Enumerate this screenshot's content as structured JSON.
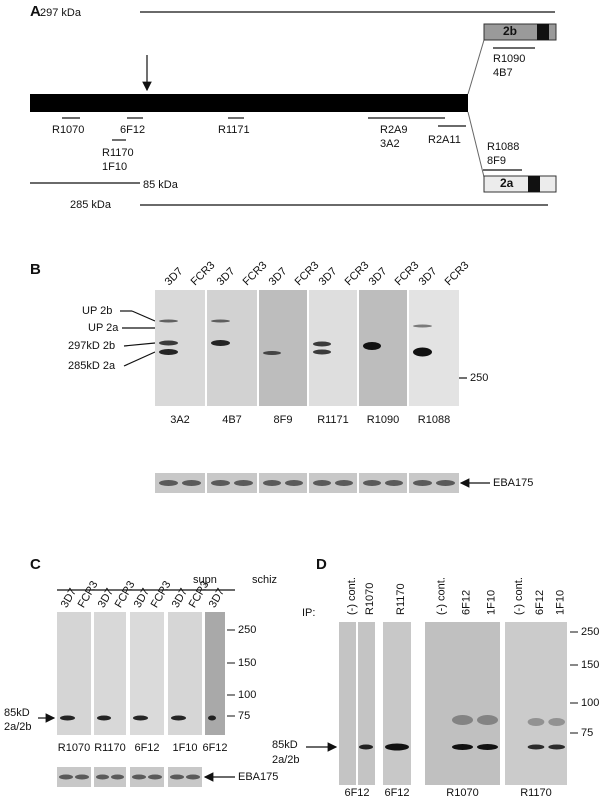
{
  "panel_a": {
    "label": "A",
    "mw_297": "297 kDa",
    "mw_85": "85 kDa",
    "mw_285": "285 kDa",
    "isoform_2b": "2b",
    "isoform_2a": "2a",
    "antibodies": [
      "R1070",
      "6F12",
      "R1171",
      "R2A9",
      "3A2",
      "R2A11",
      "R1170",
      "1F10",
      "R1090",
      "4B7",
      "R1088",
      "8F9"
    ]
  },
  "panel_b": {
    "label": "B",
    "blots": [
      {
        "lanes": [
          "3D7",
          "FCR3"
        ],
        "antibody": "3A2"
      },
      {
        "lanes": [
          "3D7",
          "FCR3"
        ],
        "antibody": "4B7"
      },
      {
        "lanes": [
          "3D7",
          "FCR3"
        ],
        "antibody": "8F9"
      },
      {
        "lanes": [
          "3D7",
          "FCR3"
        ],
        "antibody": "R1171"
      },
      {
        "lanes": [
          "3D7",
          "FCR3"
        ],
        "antibody": "R1090"
      },
      {
        "lanes": [
          "3D7",
          "FCR3"
        ],
        "antibody": "R1088"
      }
    ],
    "band_labels": [
      "UP 2b",
      "UP 2a",
      "297kD 2b",
      "285kD 2a"
    ],
    "marker": "250",
    "loading_control": "EBA175"
  },
  "panel_c": {
    "label": "C",
    "groups": [
      "supn",
      "schiz"
    ],
    "blots": [
      {
        "lanes": [
          "3D7",
          "FCR3"
        ],
        "antibody": "R1070"
      },
      {
        "lanes": [
          "3D7",
          "FCR3"
        ],
        "antibody": "R1170"
      },
      {
        "lanes": [
          "3D7",
          "FCR3"
        ],
        "antibody": "6F12"
      },
      {
        "lanes": [
          "3D7",
          "FCR3"
        ],
        "antibody": "1F10"
      },
      {
        "lanes": [
          "3D7"
        ],
        "antibody": "6F12"
      }
    ],
    "markers": [
      "250",
      "150",
      "100",
      "75"
    ],
    "band_label": [
      "85kD",
      "2a/2b"
    ],
    "loading_control": "EBA175"
  },
  "panel_d": {
    "label": "D",
    "ip_label": "IP:",
    "blots": [
      {
        "lanes": [
          "(-) cont.",
          "R1070"
        ],
        "antibody": "6F12"
      },
      {
        "lanes": [
          "R1170"
        ],
        "antibody": "6F12"
      },
      {
        "lanes": [
          "(-) cont.",
          "6F12",
          "1F10"
        ],
        "antibody": "R1070"
      },
      {
        "lanes": [
          "(-) cont.",
          "6F12",
          "1F10"
        ],
        "antibody": "R1170"
      }
    ],
    "markers": [
      "250",
      "150",
      "100",
      "75"
    ],
    "band_label": [
      "85kD",
      "2a/2b"
    ]
  }
}
